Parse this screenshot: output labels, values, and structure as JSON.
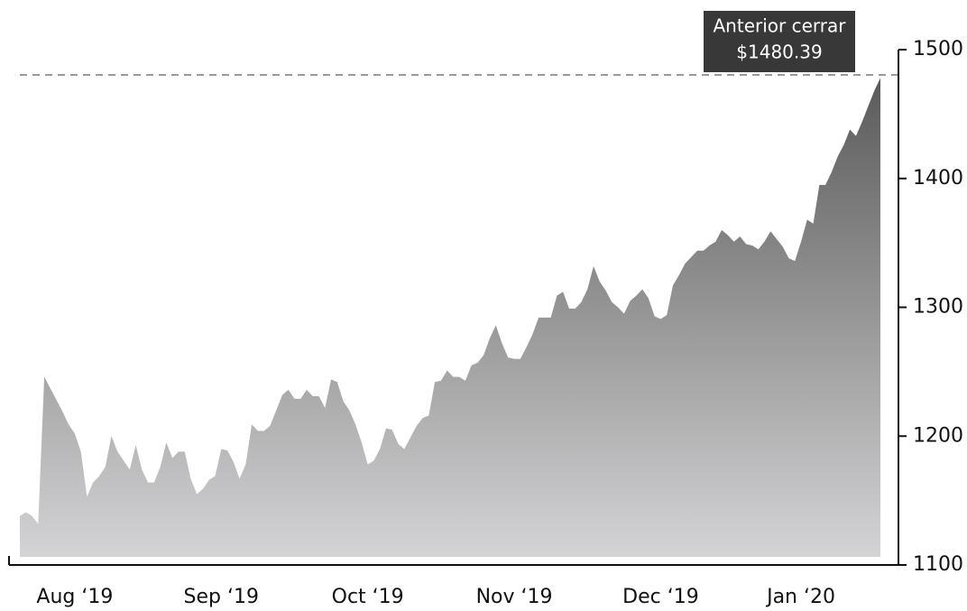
{
  "chart_data": {
    "type": "area",
    "values": [
      1138,
      1141,
      1138,
      1132,
      1246,
      1237,
      1228,
      1219,
      1209,
      1202,
      1188,
      1153,
      1164,
      1169,
      1176,
      1200,
      1188,
      1181,
      1174,
      1193,
      1174,
      1164,
      1164,
      1176,
      1195,
      1183,
      1188,
      1188,
      1167,
      1155,
      1159,
      1166,
      1169,
      1190,
      1189,
      1180,
      1167,
      1178,
      1209,
      1204,
      1204,
      1208,
      1220,
      1232,
      1236,
      1229,
      1229,
      1236,
      1231,
      1231,
      1222,
      1244,
      1242,
      1227,
      1220,
      1209,
      1195,
      1178,
      1181,
      1190,
      1206,
      1205,
      1194,
      1190,
      1199,
      1208,
      1214,
      1216,
      1242,
      1243,
      1251,
      1246,
      1246,
      1243,
      1255,
      1257,
      1263,
      1276,
      1286,
      1272,
      1261,
      1260,
      1260,
      1269,
      1279,
      1292,
      1292,
      1292,
      1309,
      1312,
      1299,
      1299,
      1304,
      1314,
      1332,
      1320,
      1313,
      1304,
      1300,
      1295,
      1305,
      1309,
      1314,
      1307,
      1293,
      1291,
      1294,
      1317,
      1325,
      1334,
      1339,
      1344,
      1344,
      1348,
      1351,
      1360,
      1356,
      1351,
      1355,
      1349,
      1348,
      1345,
      1351,
      1359,
      1353,
      1347,
      1338,
      1336,
      1351,
      1368,
      1365,
      1395,
      1395,
      1405,
      1417,
      1426,
      1438,
      1433,
      1444,
      1456,
      1468,
      1478
    ],
    "gradient": [
      "#5a5a5a",
      "#d4d4d6"
    ],
    "xlim": [
      0,
      141
    ],
    "xticks": [
      {
        "value": 9,
        "label": "Aug ‘19"
      },
      {
        "value": 33,
        "label": "Sep ‘19"
      },
      {
        "value": 57,
        "label": "Oct ‘19"
      },
      {
        "value": 81,
        "label": "Nov ‘19"
      },
      {
        "value": 105,
        "label": "Dec ‘19"
      },
      {
        "value": 128,
        "label": "Jan ‘20"
      }
    ],
    "ylim": [
      1100,
      1500
    ],
    "yticks": [
      1100,
      1200,
      1300,
      1400,
      1500
    ],
    "y_axis_side": "right",
    "reference_line": {
      "label": "Anterior cerrar",
      "value": 1480.39,
      "value_label": "$1480.39"
    }
  }
}
